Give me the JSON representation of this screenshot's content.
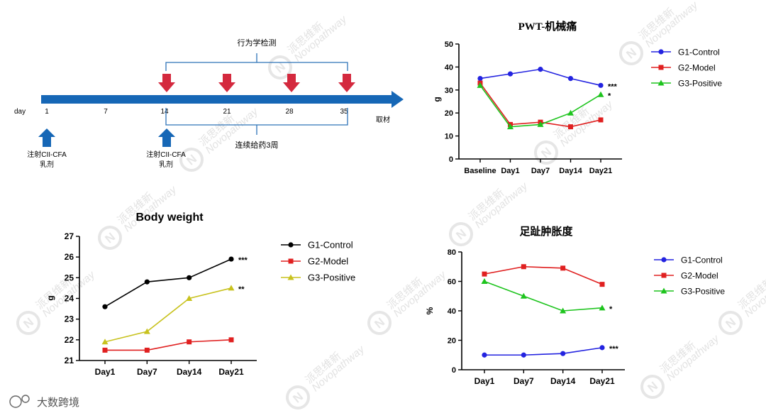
{
  "timeline": {
    "day_label": "day",
    "days": [
      "1",
      "7",
      "14",
      "21",
      "28",
      "35"
    ],
    "end_label": "取材",
    "top_bracket_label": "行为学检测",
    "bottom_bracket_label": "连续给药3周",
    "injection1": {
      "line1": "注射CII-CFA",
      "line2": "乳剂"
    },
    "injection2": {
      "line1": "注射CII-CFA",
      "line2": "乳剂"
    },
    "colors": {
      "arrow": "#1667b6",
      "test_arrow": "#d4293e",
      "bracket": "#2e73b8"
    }
  },
  "watermark": {
    "mark": "N",
    "chinese": "派思维新",
    "latin": "Novopathway"
  },
  "logo": {
    "text": "大数跨境"
  },
  "chart_data": [
    {
      "id": "pwt",
      "type": "line",
      "title": "PWT-机械痛",
      "xlabel": "",
      "ylabel": "g",
      "categories": [
        "Baseline",
        "Day1",
        "Day7",
        "Day14",
        "Day21"
      ],
      "ylim": [
        0,
        50
      ],
      "yticks": [
        0,
        10,
        20,
        30,
        40,
        50
      ],
      "legend_position": "right",
      "series": [
        {
          "name": "G1-Control",
          "color": "#2323e0",
          "marker": "circle",
          "values": [
            35,
            37,
            39,
            35,
            32
          ],
          "significance": "***"
        },
        {
          "name": "G2-Model",
          "color": "#e02020",
          "marker": "square",
          "values": [
            33,
            15,
            16,
            14,
            17
          ],
          "significance": ""
        },
        {
          "name": "G3-Positive",
          "color": "#1ec41e",
          "marker": "triangle",
          "values": [
            32,
            14,
            15,
            20,
            28
          ],
          "significance": "*"
        }
      ]
    },
    {
      "id": "bw",
      "type": "line",
      "title": "Body weight",
      "xlabel": "",
      "ylabel": "g",
      "categories": [
        "Day1",
        "Day7",
        "Day14",
        "Day21"
      ],
      "ylim": [
        21,
        27
      ],
      "yticks": [
        21,
        22,
        23,
        24,
        25,
        26,
        27
      ],
      "legend_position": "right",
      "series": [
        {
          "name": "G1-Control",
          "color": "#000000",
          "marker": "circle",
          "values": [
            23.6,
            24.8,
            25.0,
            25.9
          ],
          "significance": "***"
        },
        {
          "name": "G2-Model",
          "color": "#e02020",
          "marker": "square",
          "values": [
            21.5,
            21.5,
            21.9,
            22.0
          ],
          "significance": ""
        },
        {
          "name": "G3-Positive",
          "color": "#c8c21e",
          "marker": "triangle",
          "values": [
            21.9,
            22.4,
            24.0,
            24.5
          ],
          "significance": "**"
        }
      ]
    },
    {
      "id": "swell",
      "type": "line",
      "title": "足趾肿胀度",
      "xlabel": "",
      "ylabel": "%",
      "categories": [
        "Day1",
        "Day7",
        "Day14",
        "Day21"
      ],
      "ylim": [
        0,
        80
      ],
      "yticks": [
        0,
        20,
        40,
        60,
        80
      ],
      "legend_position": "right",
      "series": [
        {
          "name": "G1-Control",
          "color": "#2323e0",
          "marker": "circle",
          "values": [
            10,
            10,
            11,
            15
          ],
          "significance": "***"
        },
        {
          "name": "G2-Model",
          "color": "#e02020",
          "marker": "square",
          "values": [
            65,
            70,
            69,
            58
          ],
          "significance": ""
        },
        {
          "name": "G3-Positive",
          "color": "#1ec41e",
          "marker": "triangle",
          "values": [
            60,
            50,
            40,
            42
          ],
          "significance": "*"
        }
      ]
    }
  ]
}
